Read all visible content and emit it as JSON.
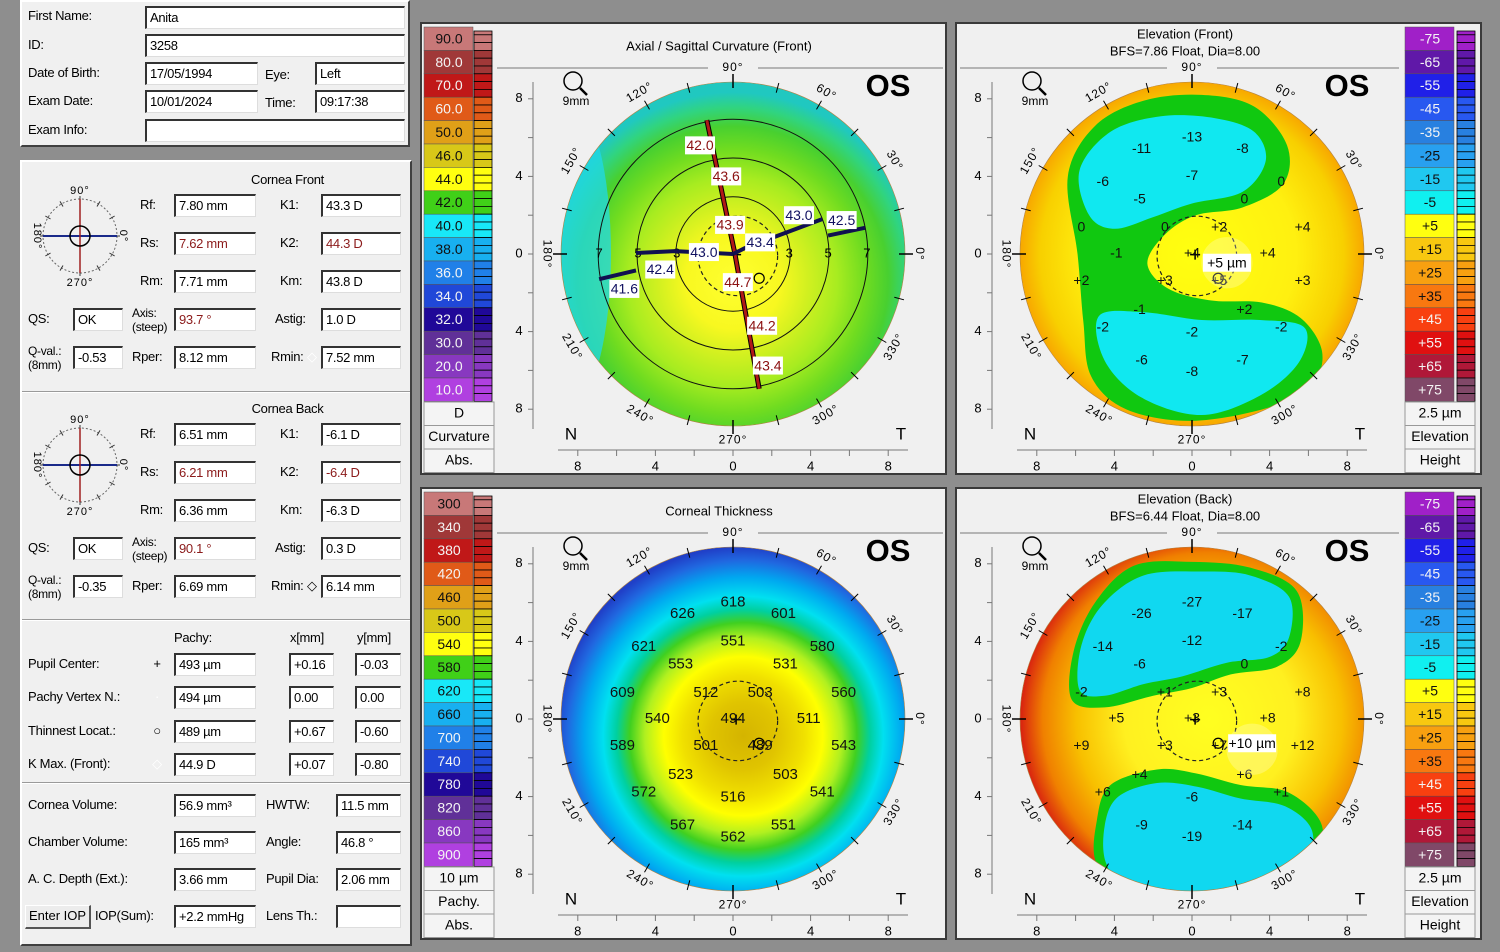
{
  "patient": {
    "first_name_label": "First Name:",
    "first_name": "Anita",
    "id_label": "ID:",
    "id": "3258",
    "dob_label": "Date of Birth:",
    "dob": "17/05/1994",
    "eye_label": "Eye:",
    "eye": "Left",
    "exam_date_label": "Exam Date:",
    "exam_date": "10/01/2024",
    "time_label": "Time:",
    "time": "09:17:38",
    "exam_info_label": "Exam Info:",
    "exam_info": ""
  },
  "cornea_labels": {
    "rf": "Rf:",
    "rs": "Rs:",
    "rm": "Rm:",
    "k1": "K1:",
    "k2": "K2:",
    "km": "Km:",
    "qs": "QS:",
    "axis": "Axis:",
    "axis2": "(steep)",
    "astig": "Astig:",
    "qval": "Q-val.:",
    "qval2": "(8mm)",
    "rper": "Rper:",
    "rmin": "Rmin:"
  },
  "dial_labels": {
    "top": "90°",
    "bottom": "270°",
    "left": "180°",
    "right": "0°"
  },
  "cornea_front": {
    "title": "Cornea Front",
    "rf": "7.80 mm",
    "rs": "7.62 mm",
    "rm": "7.71 mm",
    "k1": "43.3 D",
    "k2": "44.3 D",
    "km": "43.8 D",
    "qs": "OK",
    "axis": "93.7 °",
    "astig": "1.0 D",
    "qval": "-0.53",
    "rper": "8.12 mm",
    "rmin": "7.52 mm",
    "rmin_symbol": "◇"
  },
  "cornea_back": {
    "title": "Cornea Back",
    "rf": "6.51 mm",
    "rs": "6.21 mm",
    "rm": "6.36 mm",
    "k1": "-6.1 D",
    "k2": "-6.4 D",
    "km": "-6.3 D",
    "qs": "OK",
    "axis": "90.1 °",
    "astig": "0.3 D",
    "qval": "-0.35",
    "rper": "6.69 mm",
    "rmin": "6.14 mm",
    "rmin_symbol": "◇"
  },
  "pachy": {
    "headers": {
      "pachy": "Pachy:",
      "x": "x[mm]",
      "y": "y[mm]"
    },
    "rows": [
      {
        "label": "Pupil Center:",
        "symbol": "+",
        "pachy": "493 µm",
        "x": "+0.16",
        "y": "-0.03"
      },
      {
        "label": "Pachy Vertex N.:",
        "symbol": "·",
        "pachy": "494 µm",
        "x": "0.00",
        "y": "0.00"
      },
      {
        "label": "Thinnest Locat.:",
        "symbol": "○",
        "pachy": "489 µm",
        "x": "+0.67",
        "y": "-0.60"
      },
      {
        "label": "K Max. (Front):",
        "symbol": "◇",
        "pachy": "44.9 D",
        "x": "+0.07",
        "y": "-0.80"
      }
    ]
  },
  "volumes": [
    {
      "label": "Cornea Volume:",
      "value": "56.9 mm³",
      "label2": "HWTW:",
      "value2": "11.5 mm"
    },
    {
      "label": "Chamber Volume:",
      "value": "165 mm³",
      "label2": "Angle:",
      "value2": "46.8 °"
    },
    {
      "label": "A. C. Depth (Ext.):",
      "value": "3.66 mm",
      "label2": "Pupil Dia:",
      "value2": "2.06 mm"
    },
    {
      "label": "IOP(Sum):",
      "value": "+2.2 mmHg",
      "label2": "Lens Th.:",
      "value2": ""
    }
  ],
  "enter_iop_label": "Enter IOP",
  "map_axes": {
    "y_ticks": [
      "8",
      "4",
      "0",
      "4",
      "8"
    ],
    "x_ticks": [
      "8",
      "4",
      "0",
      "4",
      "8"
    ],
    "degrees": [
      "0°",
      "30°",
      "60°",
      "90°",
      "120°",
      "150°",
      "180°",
      "210°",
      "240°",
      "270°",
      "300°",
      "330°"
    ],
    "nasal": "N",
    "temporal": "T"
  },
  "maps": [
    {
      "title": "Axial / Sagittal Curvature (Front)",
      "subtitle": "",
      "eye": "OS",
      "zoom_label": "9mm",
      "scale": {
        "labels": [
          "90.0",
          "80.0",
          "70.0",
          "60.0",
          "50.0",
          "46.0",
          "44.0",
          "42.0",
          "40.0",
          "38.0",
          "36.0",
          "34.0",
          "32.0",
          "30.0",
          "20.0",
          "10.0"
        ],
        "colors": [
          "#c87878",
          "#a03838",
          "#c01818",
          "#e05a18",
          "#e0a018",
          "#d8c818",
          "#ffff10",
          "#40d018",
          "#18e8f8",
          "#18b0f0",
          "#2080e8",
          "#2048d8",
          "#200898",
          "#603098",
          "#8838c0",
          "#b040e0"
        ],
        "footer": [
          "D",
          "Curvature",
          "Abs."
        ]
      },
      "ring_labels": [
        "7",
        "5",
        "3",
        "3",
        "5",
        "7"
      ],
      "meridians": {
        "steep": [
          "42.0",
          "43.6",
          "43.9",
          "44.7",
          "44.2",
          "43.4"
        ],
        "flat": [
          "43.4",
          "43.0",
          "42.5",
          "43.0",
          "42.4",
          "41.6"
        ],
        "steep_color": "#8b1010",
        "flat_color": "#101060"
      }
    },
    {
      "title": "Elevation (Front)",
      "subtitle": "BFS=7.86 Float, Dia=8.00",
      "eye": "OS",
      "zoom_label": "9mm",
      "scale": {
        "labels": [
          "-75",
          "-65",
          "-55",
          "-45",
          "-35",
          "-25",
          "-15",
          "-5",
          "+5",
          "+15",
          "+25",
          "+35",
          "+45",
          "+55",
          "+65",
          "+75"
        ],
        "colors": [
          "#a020c8",
          "#6018a8",
          "#2020e8",
          "#2858f0",
          "#2880e0",
          "#28a0f0",
          "#20c8f0",
          "#10f0f0",
          "#ffff10",
          "#f8c810",
          "#f8a010",
          "#f87810",
          "#f84010",
          "#e01010",
          "#b01838",
          "#804868"
        ],
        "footer": [
          "2.5 µm",
          "Elevation",
          "Height"
        ]
      },
      "values": [
        "-13",
        "-11",
        "-8",
        "-7",
        "-6",
        "-5",
        "0",
        "0",
        "0",
        "0",
        "+2",
        "+4",
        "-1",
        "+4",
        "+4",
        "+2",
        "+3",
        "+5",
        "+3",
        "-1",
        "+2",
        "-2",
        "-2",
        "-2",
        "-6",
        "-7",
        "-8"
      ],
      "readout": "+5 µm"
    },
    {
      "title": "Corneal Thickness",
      "subtitle": "",
      "eye": "OS",
      "zoom_label": "9mm",
      "scale": {
        "labels": [
          "300",
          "340",
          "380",
          "420",
          "460",
          "500",
          "540",
          "580",
          "620",
          "660",
          "700",
          "740",
          "780",
          "820",
          "860",
          "900"
        ],
        "colors": [
          "#c87878",
          "#a03838",
          "#c01818",
          "#e05a18",
          "#e0a018",
          "#d8c818",
          "#ffff10",
          "#40d018",
          "#18e8f8",
          "#18b0f0",
          "#2080e8",
          "#2048d8",
          "#200898",
          "#603098",
          "#8838c0",
          "#b040e0"
        ],
        "footer": [
          "10 µm",
          "Pachy.",
          "Abs."
        ]
      },
      "values": [
        "618",
        "626",
        "601",
        "551",
        "621",
        "553",
        "580",
        "531",
        "609",
        "512",
        "503",
        "560",
        "540",
        "494",
        "511",
        "589",
        "501",
        "489",
        "543",
        "523",
        "503",
        "572",
        "516",
        "541",
        "567",
        "551",
        "562"
      ]
    },
    {
      "title": "Elevation (Back)",
      "subtitle": "BFS=6.44 Float, Dia=8.00",
      "eye": "OS",
      "zoom_label": "9mm",
      "scale": {
        "labels": [
          "-75",
          "-65",
          "-55",
          "-45",
          "-35",
          "-25",
          "-15",
          "-5",
          "+5",
          "+15",
          "+25",
          "+35",
          "+45",
          "+55",
          "+65",
          "+75"
        ],
        "colors": [
          "#a020c8",
          "#6018a8",
          "#2020e8",
          "#2858f0",
          "#2880e0",
          "#28a0f0",
          "#20c8f0",
          "#10f0f0",
          "#ffff10",
          "#f8c810",
          "#f8a010",
          "#f87810",
          "#f84010",
          "#e01010",
          "#b01838",
          "#804868"
        ],
        "footer": [
          "2.5 µm",
          "Elevation",
          "Height"
        ]
      },
      "values": [
        "-27",
        "-26",
        "-17",
        "-12",
        "-14",
        "-6",
        "-2",
        "0",
        "-2",
        "+1",
        "+3",
        "+8",
        "+5",
        "+3",
        "+8",
        "+9",
        "+3",
        "+7",
        "+12",
        "+4",
        "+6",
        "+6",
        "-6",
        "+1",
        "-9",
        "-14",
        "-19"
      ],
      "readout": "+10 µm"
    }
  ]
}
